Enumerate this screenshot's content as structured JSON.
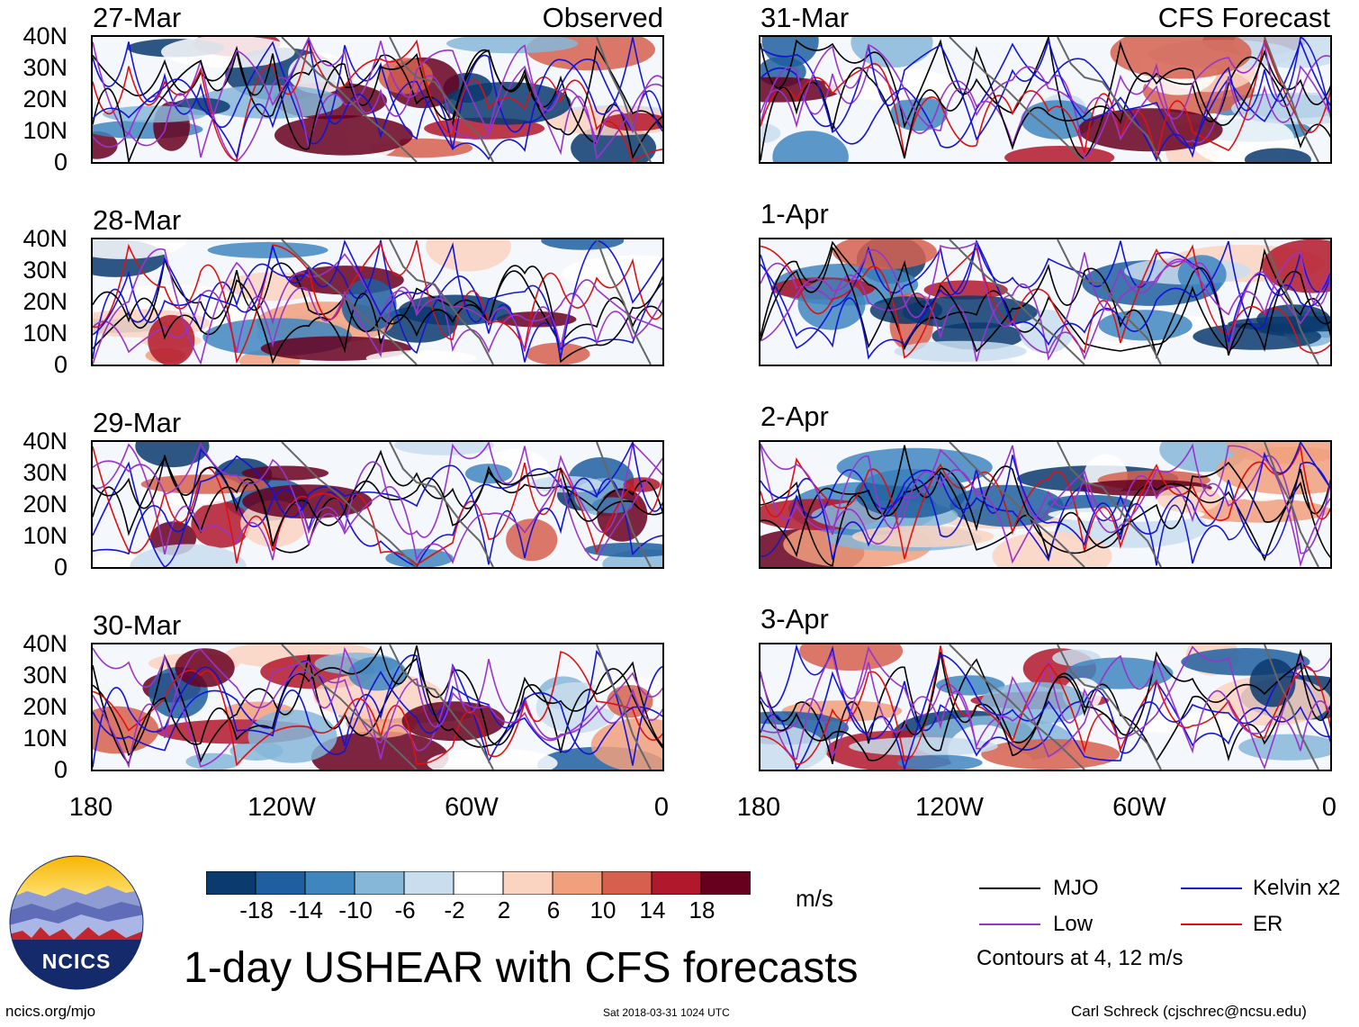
{
  "panels": {
    "left": [
      {
        "date": "27-Mar",
        "tag": "Observed"
      },
      {
        "date": "28-Mar",
        "tag": ""
      },
      {
        "date": "29-Mar",
        "tag": ""
      },
      {
        "date": "30-Mar",
        "tag": ""
      }
    ],
    "right": [
      {
        "date": "31-Mar",
        "tag": "CFS Forecast"
      },
      {
        "date": "1-Apr",
        "tag": ""
      },
      {
        "date": "2-Apr",
        "tag": ""
      },
      {
        "date": "3-Apr",
        "tag": ""
      }
    ]
  },
  "axes": {
    "lat_labels": [
      "40N",
      "30N",
      "20N",
      "10N",
      "0"
    ],
    "lon_labels": [
      "180",
      "120W",
      "60W",
      "0"
    ]
  },
  "colorbar": {
    "labels": [
      "-18",
      "-14",
      "-10",
      "-6",
      "-2",
      "2",
      "6",
      "10",
      "14",
      "18"
    ],
    "units": "m/s",
    "colors": [
      "#0a3a6e",
      "#1f5f9f",
      "#3f86bf",
      "#86b7d9",
      "#c9ddee",
      "#ffffff",
      "#fbd3c1",
      "#f1a07d",
      "#d6604d",
      "#b2182b",
      "#67001f"
    ]
  },
  "legend": {
    "items": [
      {
        "label": "MJO",
        "color": "#000000"
      },
      {
        "label": "Kelvin x2",
        "color": "#1414d8"
      },
      {
        "label": "Low",
        "color": "#9933cc"
      },
      {
        "label": "ER",
        "color": "#e01010"
      }
    ],
    "note": "Contours at 4, 12 m/s"
  },
  "footer": {
    "title": "1-day USHEAR with CFS forecasts",
    "logo_text": "NCICS",
    "url": "ncics.org/mjo",
    "timestamp": "Sat 2018-03-31 1024 UTC",
    "credit": "Carl Schreck (cjschrec@ncsu.edu)"
  }
}
